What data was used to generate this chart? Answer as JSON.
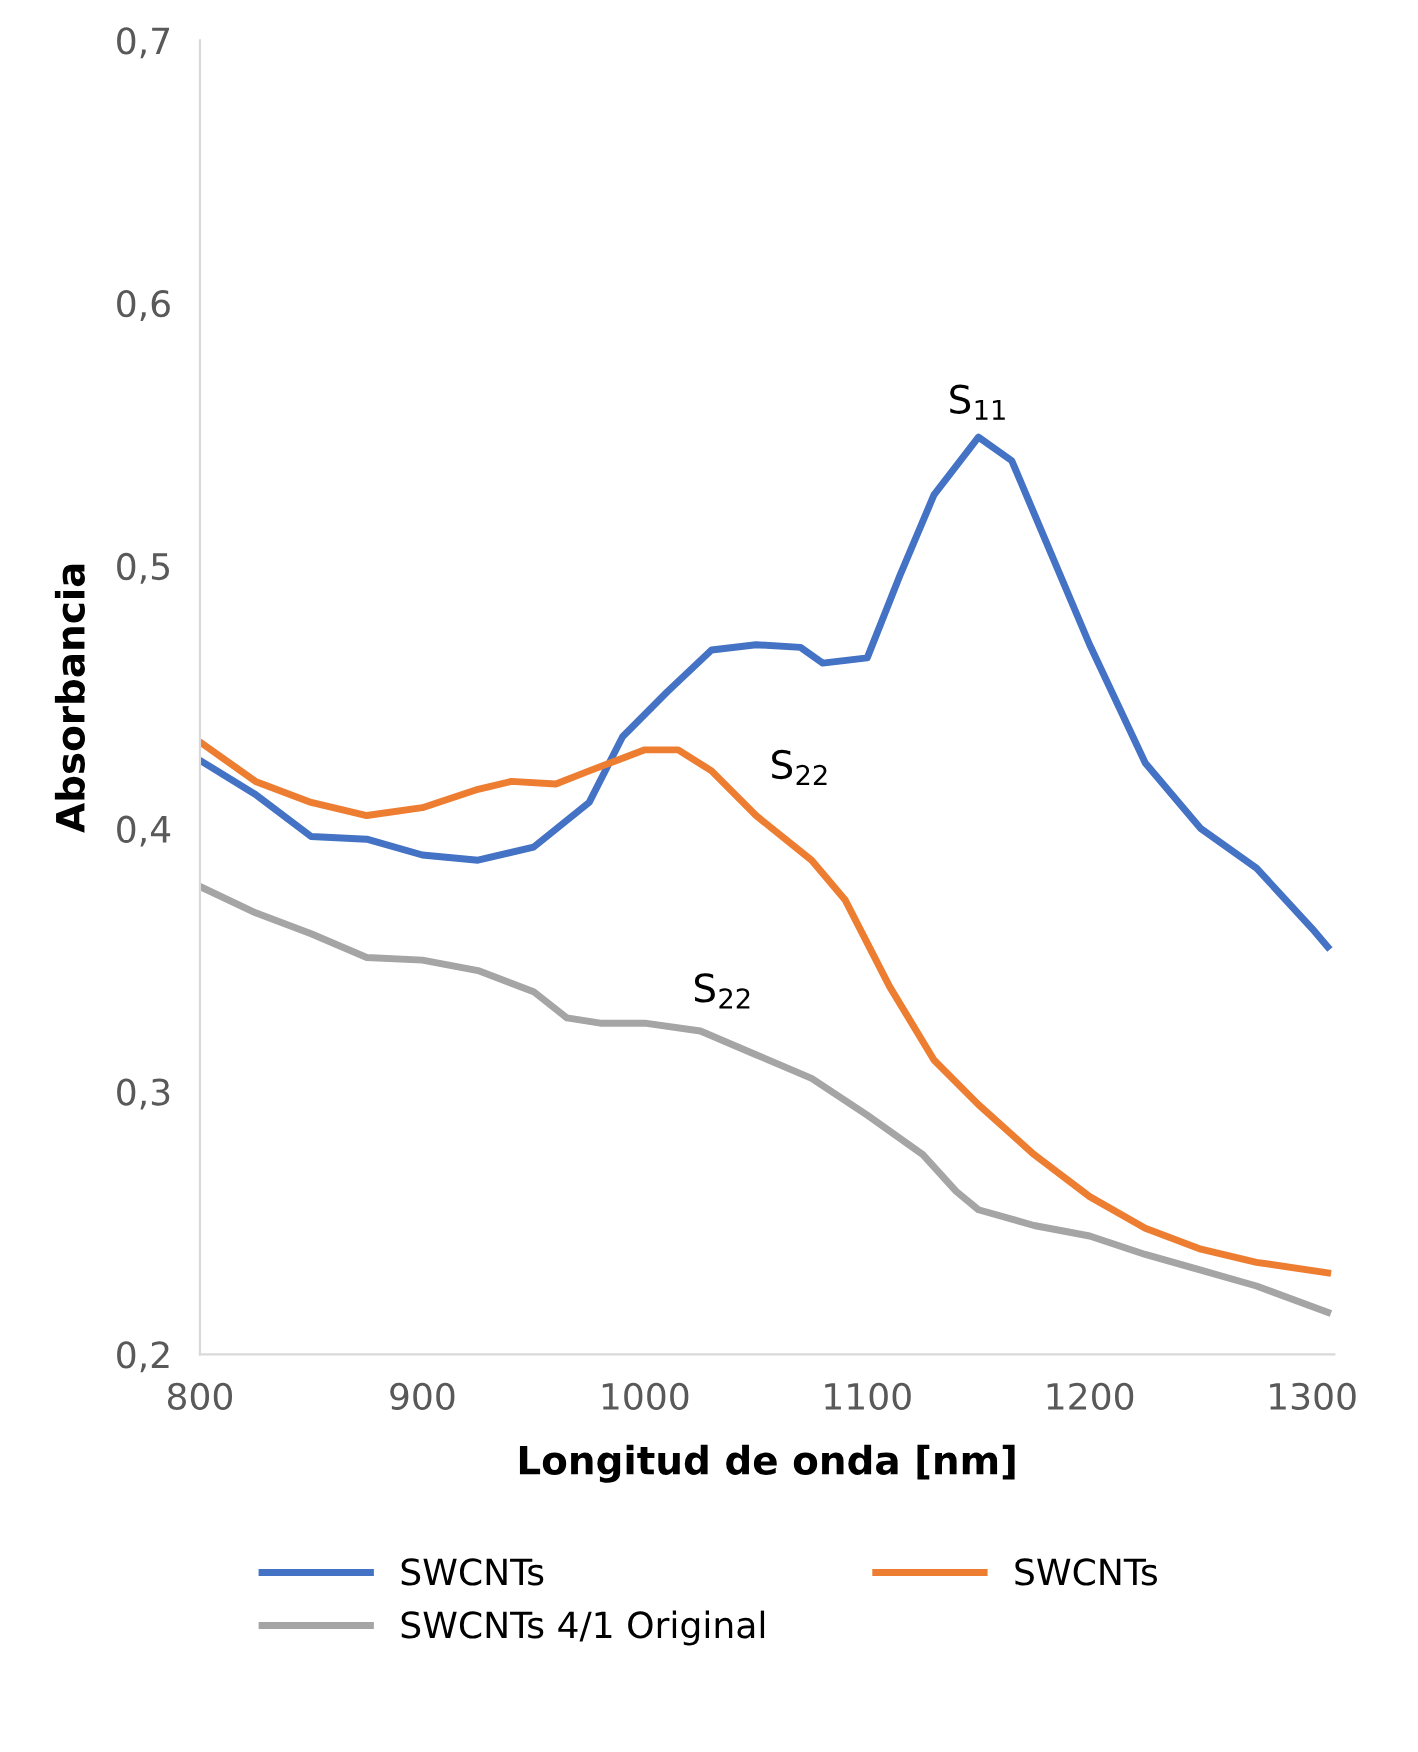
{
  "chart_data": {
    "type": "line",
    "xlabel": "Longitud de onda [nm]",
    "ylabel": "Absorbancia",
    "xlim": [
      800,
      1310
    ],
    "xticks": [
      800,
      900,
      1000,
      1100,
      1200,
      1300
    ],
    "ylim": [
      0.2,
      0.7
    ],
    "yticks": [
      {
        "value": 0.2,
        "label": "0,2"
      },
      {
        "value": 0.3,
        "label": "0,3"
      },
      {
        "value": 0.4,
        "label": "0,4"
      },
      {
        "value": 0.5,
        "label": "0,5"
      },
      {
        "value": 0.6,
        "label": "0,6"
      },
      {
        "value": 0.7,
        "label": "0,7"
      }
    ],
    "grid": false,
    "legend": "bottom",
    "marker": "none",
    "line_style": "solid",
    "series": [
      {
        "name": "SWCNTs",
        "color": "#4472c4",
        "x": [
          800,
          825,
          850,
          875,
          900,
          925,
          950,
          975,
          990,
          1010,
          1030,
          1050,
          1070,
          1080,
          1100,
          1115,
          1130,
          1150,
          1165,
          1180,
          1200,
          1225,
          1250,
          1275,
          1300,
          1307
        ],
        "values": [
          0.426,
          0.413,
          0.397,
          0.396,
          0.39,
          0.388,
          0.393,
          0.41,
          0.435,
          0.452,
          0.468,
          0.47,
          0.469,
          0.463,
          0.465,
          0.497,
          0.527,
          0.549,
          0.54,
          0.51,
          0.47,
          0.425,
          0.4,
          0.385,
          0.362,
          0.355
        ]
      },
      {
        "name": "SWCNTs",
        "color": "#ed7d31",
        "x": [
          800,
          825,
          850,
          875,
          900,
          925,
          940,
          960,
          975,
          1000,
          1015,
          1030,
          1050,
          1075,
          1090,
          1110,
          1130,
          1150,
          1175,
          1200,
          1225,
          1250,
          1275,
          1307
        ],
        "values": [
          0.433,
          0.418,
          0.41,
          0.405,
          0.408,
          0.415,
          0.418,
          0.417,
          0.422,
          0.43,
          0.43,
          0.422,
          0.405,
          0.388,
          0.373,
          0.34,
          0.312,
          0.295,
          0.276,
          0.26,
          0.248,
          0.24,
          0.235,
          0.231
        ]
      },
      {
        "name": "SWCNTs 4/1 Original",
        "color": "#a5a5a5",
        "x": [
          800,
          825,
          850,
          875,
          900,
          925,
          950,
          965,
          980,
          1000,
          1025,
          1050,
          1075,
          1100,
          1125,
          1140,
          1150,
          1175,
          1200,
          1225,
          1250,
          1275,
          1307
        ],
        "values": [
          0.378,
          0.368,
          0.36,
          0.351,
          0.35,
          0.346,
          0.338,
          0.328,
          0.326,
          0.326,
          0.323,
          0.314,
          0.305,
          0.291,
          0.276,
          0.262,
          0.255,
          0.249,
          0.245,
          0.238,
          0.232,
          0.226,
          0.216
        ]
      }
    ],
    "annotations": [
      "S$_{11}$",
      "S$_{22}$",
      "S$_{22}$"
    ]
  }
}
